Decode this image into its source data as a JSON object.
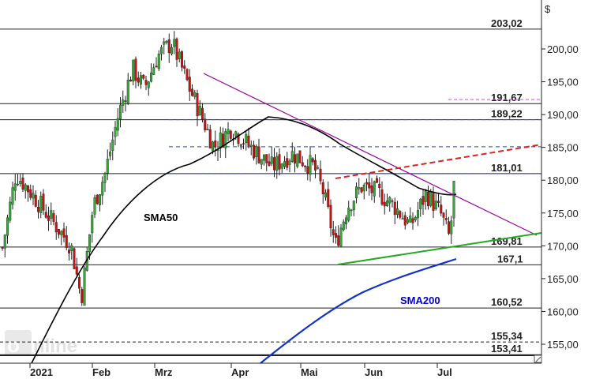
{
  "chart_data": {
    "type": "candlestick",
    "currency_label": "$",
    "ylim": [
      152.5,
      205.5
    ],
    "y_ticks": [
      155,
      160,
      165,
      170,
      175,
      180,
      185,
      190,
      195,
      200
    ],
    "y_tick_labels": [
      "155,00",
      "160,00",
      "165,00",
      "170,00",
      "175,00",
      "180,00",
      "185,00",
      "190,00",
      "195,00",
      "200,00"
    ],
    "x_labels": [
      "2021",
      "Feb",
      "Mrz",
      "Apr",
      "Mai",
      "Jun",
      "Jul"
    ],
    "horizontal_levels": [
      {
        "value": 203.02,
        "label": "203,02",
        "style": "solid"
      },
      {
        "value": 191.67,
        "label": "191,67",
        "style": "solid"
      },
      {
        "value": 189.22,
        "label": "189,22",
        "style": "solid"
      },
      {
        "value": 181.01,
        "label": "181,01",
        "style": "solid"
      },
      {
        "value": 169.81,
        "label": "169,81",
        "style": "solid"
      },
      {
        "value": 167.1,
        "label": "167,1",
        "style": "solid"
      },
      {
        "value": 160.52,
        "label": "160,52",
        "style": "solid"
      },
      {
        "value": 155.34,
        "label": "155,34",
        "style": "dashed"
      },
      {
        "value": 153.41,
        "label": "153,41",
        "style": "solid"
      }
    ],
    "annotations": [
      {
        "text": "SMA50",
        "color": "#000000"
      },
      {
        "text": "SMA200",
        "color": "#0000cc"
      }
    ],
    "colors": {
      "up": "#33aa33",
      "down": "#cc1111",
      "sma50": "#000000",
      "sma200": "#1133cc",
      "downtrend": "#990099",
      "uptrend": "#22aa22",
      "channel": "#dd2222",
      "blue_dashed": "#2244dd",
      "magenta_dashed": "#dd44dd"
    },
    "watermark": "onvista"
  }
}
